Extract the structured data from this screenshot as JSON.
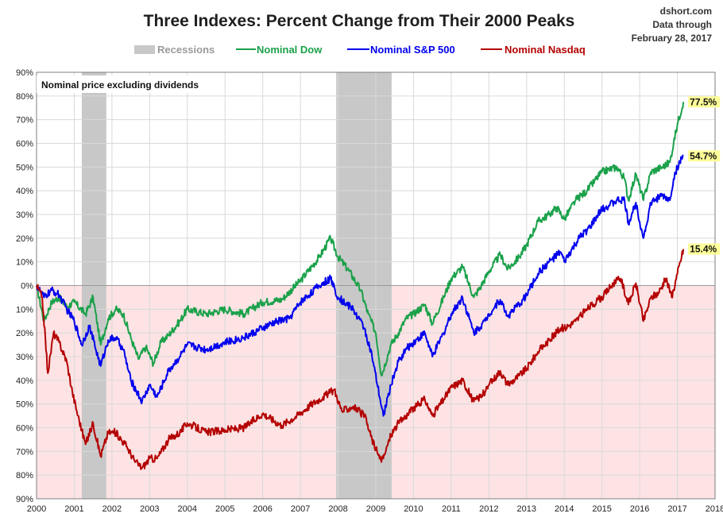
{
  "header": {
    "title": "Three Indexes: Percent Change from Their 2000 Peaks",
    "source": "dshort.com",
    "source_line2": "Data through",
    "source_line3": "February 28, 2017"
  },
  "note": "Nominal price excluding dividends",
  "chart_data": {
    "type": "line",
    "title": "Three Indexes: Percent Change from Their 2000 Peaks",
    "xlabel": "",
    "ylabel": "",
    "xlim": [
      2000,
      2018
    ],
    "ylim": [
      -90,
      90
    ],
    "x_ticks": [
      2000,
      2001,
      2002,
      2003,
      2004,
      2005,
      2006,
      2007,
      2008,
      2009,
      2010,
      2011,
      2012,
      2013,
      2014,
      2015,
      2016,
      2017,
      2018
    ],
    "y_ticks": [
      90,
      80,
      70,
      60,
      50,
      40,
      30,
      20,
      10,
      0,
      -10,
      -20,
      -30,
      -40,
      -50,
      -60,
      -70,
      -80,
      -90
    ],
    "y_tick_labels": [
      "90%",
      "80%",
      "70%",
      "60%",
      "50%",
      "40%",
      "30%",
      "20%",
      "10%",
      "0%",
      "10%",
      "20%",
      "30%",
      "40%",
      "50%",
      "60%",
      "70%",
      "80%",
      "90%"
    ],
    "grid": true,
    "negative_region_color": "#fde3e4",
    "legend": [
      {
        "label": "Recessions",
        "color": "#c8c8c8",
        "text_color": "#9a9a9a"
      },
      {
        "label": "Nominal Dow",
        "color": "#1aa14a",
        "text_color": "#1aa14a"
      },
      {
        "label": "Nominal S&P 500",
        "color": "#0000ee",
        "text_color": "#0000ee"
      },
      {
        "label": "Nominal Nasdaq",
        "color": "#b40000",
        "text_color": "#b40000"
      }
    ],
    "recessions": [
      {
        "start": 2001.2,
        "end": 2001.85
      },
      {
        "start": 2007.95,
        "end": 2009.42
      }
    ],
    "series": [
      {
        "name": "Nominal Dow",
        "color": "#1aa14a",
        "end_label": "77.5%",
        "points": [
          [
            2000.0,
            0
          ],
          [
            2000.2,
            -15
          ],
          [
            2000.4,
            -7
          ],
          [
            2000.6,
            -5
          ],
          [
            2000.8,
            -9
          ],
          [
            2001.0,
            -7
          ],
          [
            2001.3,
            -12
          ],
          [
            2001.5,
            -5
          ],
          [
            2001.7,
            -25
          ],
          [
            2001.9,
            -14
          ],
          [
            2002.1,
            -10
          ],
          [
            2002.3,
            -12
          ],
          [
            2002.5,
            -22
          ],
          [
            2002.7,
            -31
          ],
          [
            2002.9,
            -26
          ],
          [
            2003.1,
            -33
          ],
          [
            2003.3,
            -24
          ],
          [
            2003.5,
            -21
          ],
          [
            2003.8,
            -15
          ],
          [
            2004.0,
            -10
          ],
          [
            2004.5,
            -12
          ],
          [
            2005.0,
            -10
          ],
          [
            2005.5,
            -12
          ],
          [
            2006.0,
            -7
          ],
          [
            2006.5,
            -6
          ],
          [
            2007.0,
            2
          ],
          [
            2007.5,
            12
          ],
          [
            2007.8,
            20
          ],
          [
            2008.0,
            12
          ],
          [
            2008.3,
            6
          ],
          [
            2008.6,
            -2
          ],
          [
            2008.8,
            -12
          ],
          [
            2009.0,
            -20
          ],
          [
            2009.15,
            -38
          ],
          [
            2009.4,
            -25
          ],
          [
            2009.6,
            -20
          ],
          [
            2009.8,
            -14
          ],
          [
            2010.0,
            -12
          ],
          [
            2010.3,
            -8
          ],
          [
            2010.5,
            -16
          ],
          [
            2010.8,
            -5
          ],
          [
            2011.0,
            3
          ],
          [
            2011.3,
            8
          ],
          [
            2011.6,
            -5
          ],
          [
            2011.8,
            0
          ],
          [
            2012.0,
            6
          ],
          [
            2012.3,
            13
          ],
          [
            2012.5,
            7
          ],
          [
            2012.8,
            12
          ],
          [
            2013.0,
            17
          ],
          [
            2013.3,
            27
          ],
          [
            2013.6,
            30
          ],
          [
            2013.8,
            33
          ],
          [
            2014.0,
            28
          ],
          [
            2014.3,
            36
          ],
          [
            2014.6,
            40
          ],
          [
            2014.8,
            44
          ],
          [
            2015.0,
            48
          ],
          [
            2015.4,
            50
          ],
          [
            2015.6,
            45
          ],
          [
            2015.7,
            36
          ],
          [
            2015.9,
            47
          ],
          [
            2016.1,
            36
          ],
          [
            2016.3,
            48
          ],
          [
            2016.6,
            50
          ],
          [
            2016.8,
            52
          ],
          [
            2016.9,
            60
          ],
          [
            2017.0,
            68
          ],
          [
            2017.16,
            77.5
          ]
        ]
      },
      {
        "name": "Nominal S&P 500",
        "color": "#0000ee",
        "end_label": "54.7%",
        "points": [
          [
            2000.0,
            0
          ],
          [
            2000.2,
            -5
          ],
          [
            2000.4,
            -2
          ],
          [
            2000.6,
            -4
          ],
          [
            2000.8,
            -10
          ],
          [
            2001.0,
            -15
          ],
          [
            2001.2,
            -25
          ],
          [
            2001.4,
            -17
          ],
          [
            2001.7,
            -34
          ],
          [
            2001.9,
            -23
          ],
          [
            2002.1,
            -22
          ],
          [
            2002.3,
            -27
          ],
          [
            2002.5,
            -40
          ],
          [
            2002.8,
            -49
          ],
          [
            2003.0,
            -42
          ],
          [
            2003.2,
            -47
          ],
          [
            2003.5,
            -36
          ],
          [
            2003.8,
            -30
          ],
          [
            2004.0,
            -25
          ],
          [
            2004.5,
            -27
          ],
          [
            2005.0,
            -24
          ],
          [
            2005.5,
            -22
          ],
          [
            2006.0,
            -18
          ],
          [
            2006.4,
            -15
          ],
          [
            2006.7,
            -14
          ],
          [
            2007.0,
            -7
          ],
          [
            2007.5,
            0
          ],
          [
            2007.8,
            3
          ],
          [
            2008.0,
            -5
          ],
          [
            2008.4,
            -10
          ],
          [
            2008.7,
            -18
          ],
          [
            2008.9,
            -30
          ],
          [
            2009.1,
            -47
          ],
          [
            2009.2,
            -55
          ],
          [
            2009.4,
            -42
          ],
          [
            2009.6,
            -32
          ],
          [
            2009.8,
            -27
          ],
          [
            2010.0,
            -24
          ],
          [
            2010.3,
            -20
          ],
          [
            2010.5,
            -30
          ],
          [
            2010.8,
            -20
          ],
          [
            2011.0,
            -12
          ],
          [
            2011.3,
            -5
          ],
          [
            2011.6,
            -20
          ],
          [
            2011.9,
            -15
          ],
          [
            2012.0,
            -12
          ],
          [
            2012.3,
            -6
          ],
          [
            2012.5,
            -13
          ],
          [
            2012.8,
            -8
          ],
          [
            2013.0,
            -4
          ],
          [
            2013.3,
            5
          ],
          [
            2013.6,
            10
          ],
          [
            2013.9,
            14
          ],
          [
            2014.0,
            10
          ],
          [
            2014.4,
            20
          ],
          [
            2014.7,
            25
          ],
          [
            2014.9,
            30
          ],
          [
            2015.0,
            32
          ],
          [
            2015.4,
            36
          ],
          [
            2015.6,
            36
          ],
          [
            2015.7,
            26
          ],
          [
            2015.9,
            35
          ],
          [
            2016.1,
            20
          ],
          [
            2016.3,
            35
          ],
          [
            2016.6,
            38
          ],
          [
            2016.8,
            36
          ],
          [
            2016.9,
            45
          ],
          [
            2017.0,
            50
          ],
          [
            2017.16,
            54.7
          ]
        ]
      },
      {
        "name": "Nominal Nasdaq",
        "color": "#b40000",
        "end_label": "15.4%",
        "points": [
          [
            2000.0,
            0
          ],
          [
            2000.15,
            -5
          ],
          [
            2000.3,
            -37
          ],
          [
            2000.45,
            -20
          ],
          [
            2000.6,
            -24
          ],
          [
            2000.8,
            -32
          ],
          [
            2000.95,
            -45
          ],
          [
            2001.1,
            -55
          ],
          [
            2001.3,
            -67
          ],
          [
            2001.5,
            -58
          ],
          [
            2001.7,
            -72
          ],
          [
            2001.9,
            -62
          ],
          [
            2002.1,
            -62
          ],
          [
            2002.4,
            -68
          ],
          [
            2002.6,
            -74
          ],
          [
            2002.8,
            -77
          ],
          [
            2003.0,
            -73
          ],
          [
            2003.2,
            -73
          ],
          [
            2003.5,
            -65
          ],
          [
            2003.8,
            -62
          ],
          [
            2004.0,
            -58
          ],
          [
            2004.5,
            -62
          ],
          [
            2005.0,
            -61
          ],
          [
            2005.5,
            -60
          ],
          [
            2006.0,
            -54
          ],
          [
            2006.5,
            -59
          ],
          [
            2006.9,
            -55
          ],
          [
            2007.3,
            -50
          ],
          [
            2007.6,
            -47
          ],
          [
            2007.9,
            -44
          ],
          [
            2008.1,
            -53
          ],
          [
            2008.4,
            -51
          ],
          [
            2008.7,
            -55
          ],
          [
            2008.9,
            -65
          ],
          [
            2009.1,
            -73
          ],
          [
            2009.2,
            -73
          ],
          [
            2009.4,
            -63
          ],
          [
            2009.6,
            -58
          ],
          [
            2009.8,
            -55
          ],
          [
            2010.0,
            -52
          ],
          [
            2010.3,
            -48
          ],
          [
            2010.5,
            -55
          ],
          [
            2010.8,
            -48
          ],
          [
            2011.0,
            -43
          ],
          [
            2011.3,
            -40
          ],
          [
            2011.6,
            -49
          ],
          [
            2011.9,
            -45
          ],
          [
            2012.0,
            -42
          ],
          [
            2012.3,
            -36
          ],
          [
            2012.5,
            -42
          ],
          [
            2012.8,
            -38
          ],
          [
            2013.0,
            -35
          ],
          [
            2013.3,
            -28
          ],
          [
            2013.6,
            -23
          ],
          [
            2013.9,
            -18
          ],
          [
            2014.0,
            -18
          ],
          [
            2014.3,
            -15
          ],
          [
            2014.6,
            -10
          ],
          [
            2014.9,
            -6
          ],
          [
            2015.0,
            -5
          ],
          [
            2015.3,
            1
          ],
          [
            2015.5,
            3
          ],
          [
            2015.7,
            -8
          ],
          [
            2015.9,
            1
          ],
          [
            2016.1,
            -15
          ],
          [
            2016.3,
            -5
          ],
          [
            2016.5,
            -3
          ],
          [
            2016.7,
            3
          ],
          [
            2016.85,
            -5
          ],
          [
            2017.0,
            5
          ],
          [
            2017.16,
            15.4
          ]
        ]
      }
    ]
  }
}
